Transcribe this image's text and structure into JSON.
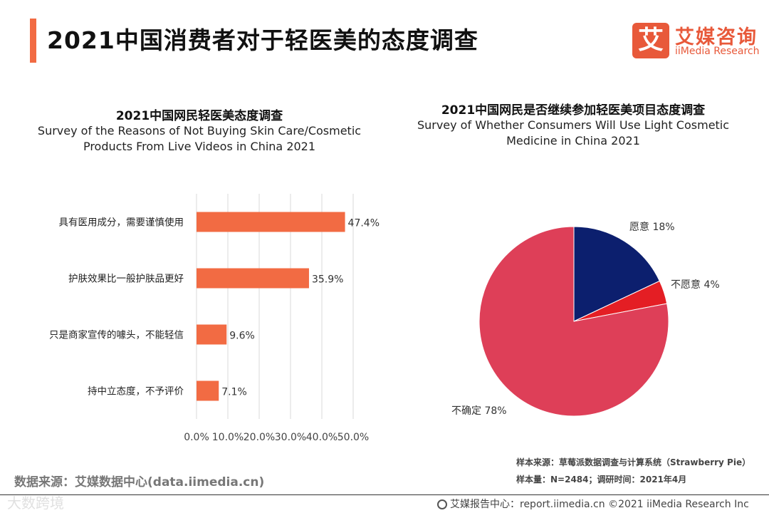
{
  "page": {
    "title": "2021中国消费者对于轻医美的态度调查",
    "logo_mark": "艾",
    "logo_cn": "艾媒咨询",
    "logo_en": "iiMedia Research"
  },
  "left_chart": {
    "title_cn": "2021中国网民轻医美态度调查",
    "title_en_line1": "Survey of the Reasons of Not Buying Skin Care/Cosmetic",
    "title_en_line2": "Products From Live Videos in China 2021"
  },
  "right_chart": {
    "title_cn": "2021中国网民是否继续参加轻医美项目态度调查",
    "title_en_line1": "Survey of Whether Consumers Will Use Light Cosmetic",
    "title_en_line2": "Medicine in China 2021"
  },
  "chart_data": [
    {
      "type": "bar",
      "orientation": "horizontal",
      "categories": [
        "具有医用成分，需要谨慎使用",
        "护肤效果比一般护肤品更好",
        "只是商家宣传的噱头，不能轻信",
        "持中立态度，不予评价"
      ],
      "values": [
        47.4,
        35.9,
        9.6,
        7.1
      ],
      "value_labels": [
        "47.4%",
        "35.9%",
        "9.6%",
        "7.1%"
      ],
      "xlim": [
        0,
        50
      ],
      "x_ticks": [
        "0.0%",
        "10.0%",
        "20.0%",
        "30.0%",
        "40.0%",
        "50.0%"
      ],
      "grid": true,
      "color": "#f26b43"
    },
    {
      "type": "pie",
      "labels": [
        "愿意 18%",
        "不愿意 4%",
        "不确定 78%"
      ],
      "values": [
        18,
        4,
        78
      ],
      "colors": [
        "#0c1f6e",
        "#e41e24",
        "#de3f58"
      ]
    }
  ],
  "notes": {
    "source_left": "数据来源：艾媒数据中心(data.iimedia.cn)",
    "sample_source": "样本来源：草莓派数据调查与计算系统（Strawberry Pie）",
    "sample_size": "样本量：N=2484；调研时间：2021年4月",
    "footer": "艾媒报告中心：report.iimedia.cn   ©2021  iiMedia Research  Inc",
    "watermark": "大数跨境"
  }
}
